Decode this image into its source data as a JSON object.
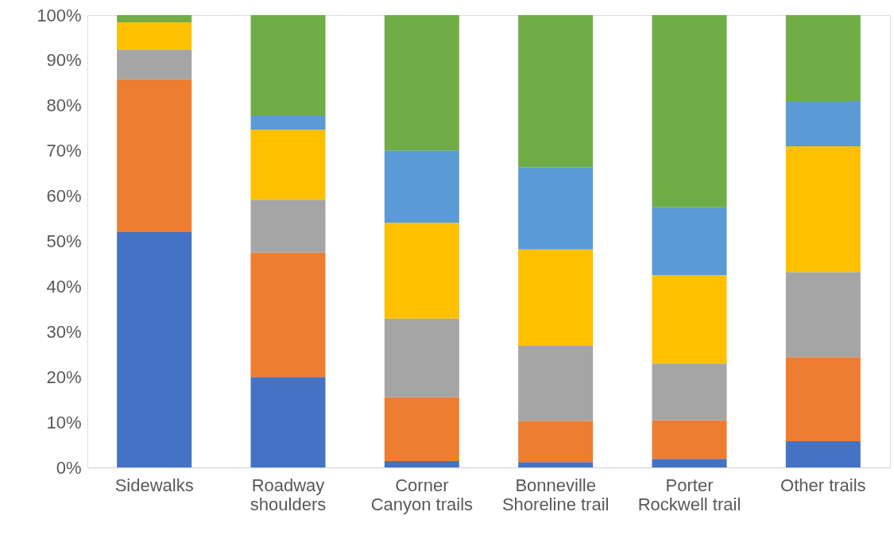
{
  "chart_data": {
    "type": "bar",
    "stacked": true,
    "categories": [
      "Sidewalks",
      "Roadway\nshoulders",
      "Corner\nCanyon trails",
      "Bonneville\nShoreline trail",
      "Porter\nRockwell trail",
      "Other trails"
    ],
    "series": [
      {
        "color": "#4472c4",
        "values": [
          52,
          20,
          1.4,
          1.2,
          1.9,
          5.8
        ]
      },
      {
        "color": "#ed7d31",
        "values": [
          33.8,
          27.5,
          14.1,
          9.1,
          8.5,
          18.6
        ]
      },
      {
        "color": "#a5a5a5",
        "values": [
          6.6,
          11.7,
          17.4,
          16.6,
          12.6,
          18.8
        ]
      },
      {
        "color": "#ffc000",
        "values": [
          6,
          15.5,
          21.2,
          21.3,
          19.5,
          27.8
        ]
      },
      {
        "color": "#5b9bd5",
        "values": [
          0,
          3,
          16,
          18.2,
          15,
          10
        ]
      },
      {
        "color": "#70ad47",
        "values": [
          1.6,
          22.3,
          29.9,
          33.6,
          42.5,
          19
        ]
      }
    ],
    "ylim": [
      0,
      100
    ],
    "yticks": [
      {
        "value": 0,
        "label": "0%"
      },
      {
        "value": 10,
        "label": "10%"
      },
      {
        "value": 20,
        "label": "20%"
      },
      {
        "value": 30,
        "label": "30%"
      },
      {
        "value": 40,
        "label": "40%"
      },
      {
        "value": 50,
        "label": "50%"
      },
      {
        "value": 60,
        "label": "60%"
      },
      {
        "value": 70,
        "label": "70%"
      },
      {
        "value": 80,
        "label": "80%"
      },
      {
        "value": 90,
        "label": "90%"
      },
      {
        "value": 100,
        "label": "100%"
      }
    ],
    "grid": false,
    "legend": false
  }
}
